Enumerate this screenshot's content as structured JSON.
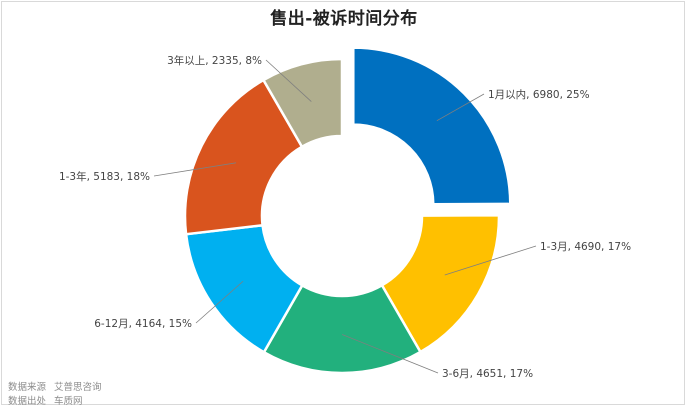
{
  "chart_data": {
    "type": "pie",
    "title": "售出-被诉时间分布",
    "slices": [
      {
        "label": "1月以内",
        "value": 6980,
        "percent": "25%",
        "color": "#0070c0"
      },
      {
        "label": "1-3月",
        "value": 4690,
        "percent": "17%",
        "color": "#ffc000"
      },
      {
        "label": "3-6月",
        "value": 4651,
        "percent": "17%",
        "color": "#22b07d"
      },
      {
        "label": "6-12月",
        "value": 4164,
        "percent": "15%",
        "color": "#00b0f0"
      },
      {
        "label": "1-3年",
        "value": 5183,
        "percent": "18%",
        "color": "#d9541e"
      },
      {
        "label": "3年以上",
        "value": 2335,
        "percent": "8%",
        "color": "#b0ae8e"
      }
    ],
    "exploded_slice": "1月以内",
    "legend": "none"
  },
  "footer": {
    "source_key": "数据来源",
    "source_value": "艾普思咨询",
    "publisher_key": "数据出处",
    "publisher_value": "车质网"
  }
}
